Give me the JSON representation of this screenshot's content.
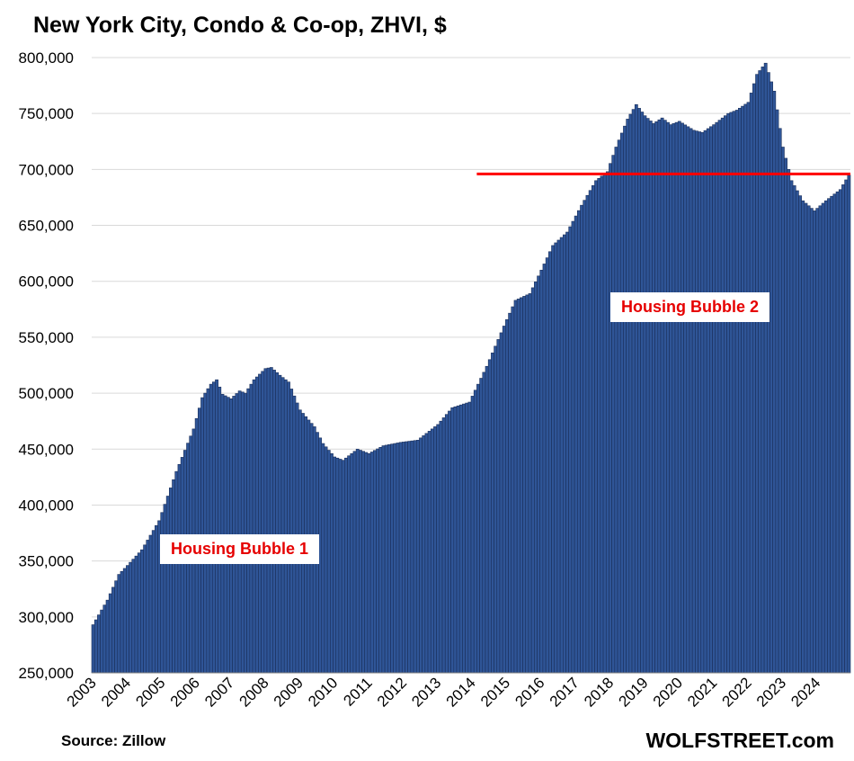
{
  "chart_data": {
    "type": "bar",
    "title": "New York City, Condo & Co-op, ZHVI, $",
    "xlabel": "",
    "ylabel": "",
    "ylim": [
      250000,
      800000
    ],
    "yticks": [
      "250,000",
      "300,000",
      "350,000",
      "400,000",
      "450,000",
      "500,000",
      "550,000",
      "600,000",
      "650,000",
      "700,000",
      "750,000",
      "800,000"
    ],
    "xticks": [
      "2003",
      "2004",
      "2005",
      "2006",
      "2007",
      "2008",
      "2009",
      "2010",
      "2011",
      "2012",
      "2013",
      "2014",
      "2015",
      "2016",
      "2017",
      "2018",
      "2019",
      "2020",
      "2021",
      "2022",
      "2023",
      "2024"
    ],
    "frequency": "monthly",
    "start": "2003-01",
    "bar_color": "#2f5597",
    "bar_edge_color": "#1a2f5a",
    "grid": "horizontal",
    "reference_line": {
      "value": 696000,
      "from": "2014-03",
      "color": "#ff0000"
    },
    "annotations": [
      "Housing Bubble 1",
      "Housing Bubble 2"
    ],
    "anchors": [
      [
        "2003-01",
        293000
      ],
      [
        "2003-06",
        315000
      ],
      [
        "2003-10",
        338000
      ],
      [
        "2004-01",
        346000
      ],
      [
        "2004-06",
        360000
      ],
      [
        "2004-12",
        386000
      ],
      [
        "2005-06",
        430000
      ],
      [
        "2005-12",
        468000
      ],
      [
        "2006-03",
        496000
      ],
      [
        "2006-06",
        508000
      ],
      [
        "2006-08",
        512000
      ],
      [
        "2006-10",
        499000
      ],
      [
        "2007-01",
        495000
      ],
      [
        "2007-04",
        502000
      ],
      [
        "2007-06",
        500000
      ],
      [
        "2007-09",
        512000
      ],
      [
        "2008-01",
        522000
      ],
      [
        "2008-03",
        523000
      ],
      [
        "2008-06",
        516000
      ],
      [
        "2008-09",
        510000
      ],
      [
        "2009-01",
        485000
      ],
      [
        "2009-06",
        470000
      ],
      [
        "2009-09",
        455000
      ],
      [
        "2010-01",
        443000
      ],
      [
        "2010-04",
        440000
      ],
      [
        "2010-09",
        450000
      ],
      [
        "2011-01",
        446000
      ],
      [
        "2011-06",
        453000
      ],
      [
        "2011-12",
        456000
      ],
      [
        "2012-06",
        458000
      ],
      [
        "2013-01",
        472000
      ],
      [
        "2013-06",
        487000
      ],
      [
        "2013-12",
        492000
      ],
      [
        "2014-03",
        508000
      ],
      [
        "2014-06",
        524000
      ],
      [
        "2014-12",
        560000
      ],
      [
        "2015-04",
        583000
      ],
      [
        "2015-09",
        589000
      ],
      [
        "2016-01",
        610000
      ],
      [
        "2016-05",
        632000
      ],
      [
        "2016-10",
        644000
      ],
      [
        "2017-03",
        668000
      ],
      [
        "2017-08",
        690000
      ],
      [
        "2017-12",
        698000
      ],
      [
        "2018-03",
        720000
      ],
      [
        "2018-07",
        745000
      ],
      [
        "2018-10",
        758000
      ],
      [
        "2019-01",
        748000
      ],
      [
        "2019-04",
        741000
      ],
      [
        "2019-07",
        746000
      ],
      [
        "2019-10",
        740000
      ],
      [
        "2020-01",
        743000
      ],
      [
        "2020-06",
        735000
      ],
      [
        "2020-09",
        733000
      ],
      [
        "2021-01",
        740000
      ],
      [
        "2021-06",
        750000
      ],
      [
        "2021-09",
        753000
      ],
      [
        "2022-01",
        760000
      ],
      [
        "2022-04",
        785000
      ],
      [
        "2022-07",
        795000
      ],
      [
        "2022-10",
        770000
      ],
      [
        "2023-01",
        720000
      ],
      [
        "2023-04",
        690000
      ],
      [
        "2023-08",
        672000
      ],
      [
        "2023-12",
        663000
      ],
      [
        "2024-04",
        672000
      ],
      [
        "2024-09",
        682000
      ],
      [
        "2024-12",
        695000
      ]
    ]
  },
  "labels": {
    "source": "Source: Zillow",
    "credit": "WOLFSTREET.com",
    "bubble1": "Housing Bubble 1",
    "bubble2": "Housing Bubble 2"
  }
}
